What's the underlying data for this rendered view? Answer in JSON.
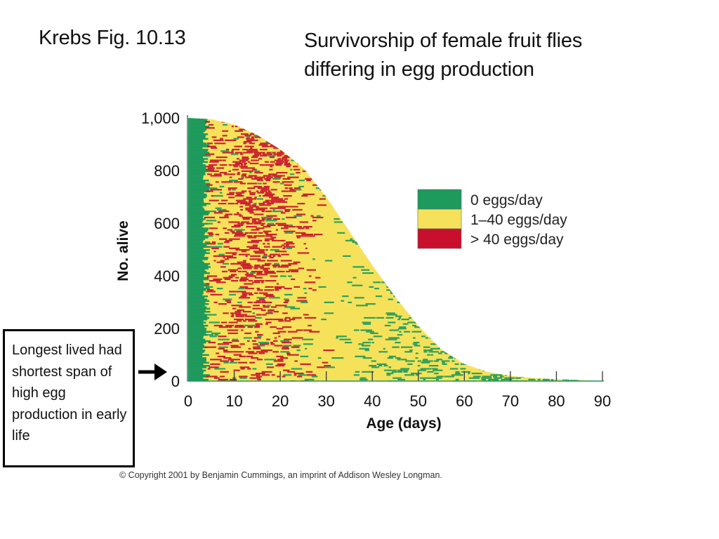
{
  "slide": {
    "title": "Krebs Fig. 10.13",
    "subtitle": "Survivorship of female fruit flies differing in egg production",
    "annotation": "Longest lived had shortest span of high egg production in early life",
    "copyright": "© Copyright 2001 by Benjamin Cummings, an imprint of Addison Wesley Longman."
  },
  "chart_data": {
    "type": "area",
    "title": "",
    "xlabel": "Age (days)",
    "ylabel": "No. alive",
    "xlim": [
      0,
      90
    ],
    "ylim": [
      0,
      1000
    ],
    "x_ticks": [
      0,
      10,
      20,
      30,
      40,
      50,
      60,
      70,
      80,
      90
    ],
    "x_tick_labels": [
      "0",
      "10",
      "20",
      "30",
      "40",
      "50",
      "60",
      "70",
      "80",
      "90"
    ],
    "y_ticks": [
      0,
      200,
      400,
      600,
      800,
      1000
    ],
    "y_tick_labels": [
      "0",
      "200",
      "400",
      "600",
      "800",
      "1,000"
    ],
    "grid": false,
    "legend_position": "right",
    "series": [
      {
        "name": "0 eggs/day",
        "color": "#1d9a5c"
      },
      {
        "name": "1–40 eggs/day",
        "color": "#f5e25a"
      },
      {
        "name": "> 40 eggs/day",
        "color": "#c8102e"
      }
    ],
    "survivorship": {
      "x": [
        0,
        5,
        10,
        15,
        20,
        25,
        30,
        35,
        40,
        45,
        50,
        55,
        60,
        65,
        70,
        75,
        80,
        85,
        90
      ],
      "y": [
        1000,
        995,
        975,
        935,
        880,
        810,
        700,
        570,
        440,
        320,
        210,
        120,
        65,
        35,
        20,
        12,
        7,
        4,
        0
      ]
    },
    "annotation_arrow_target": {
      "x": 0,
      "y": 0
    }
  }
}
